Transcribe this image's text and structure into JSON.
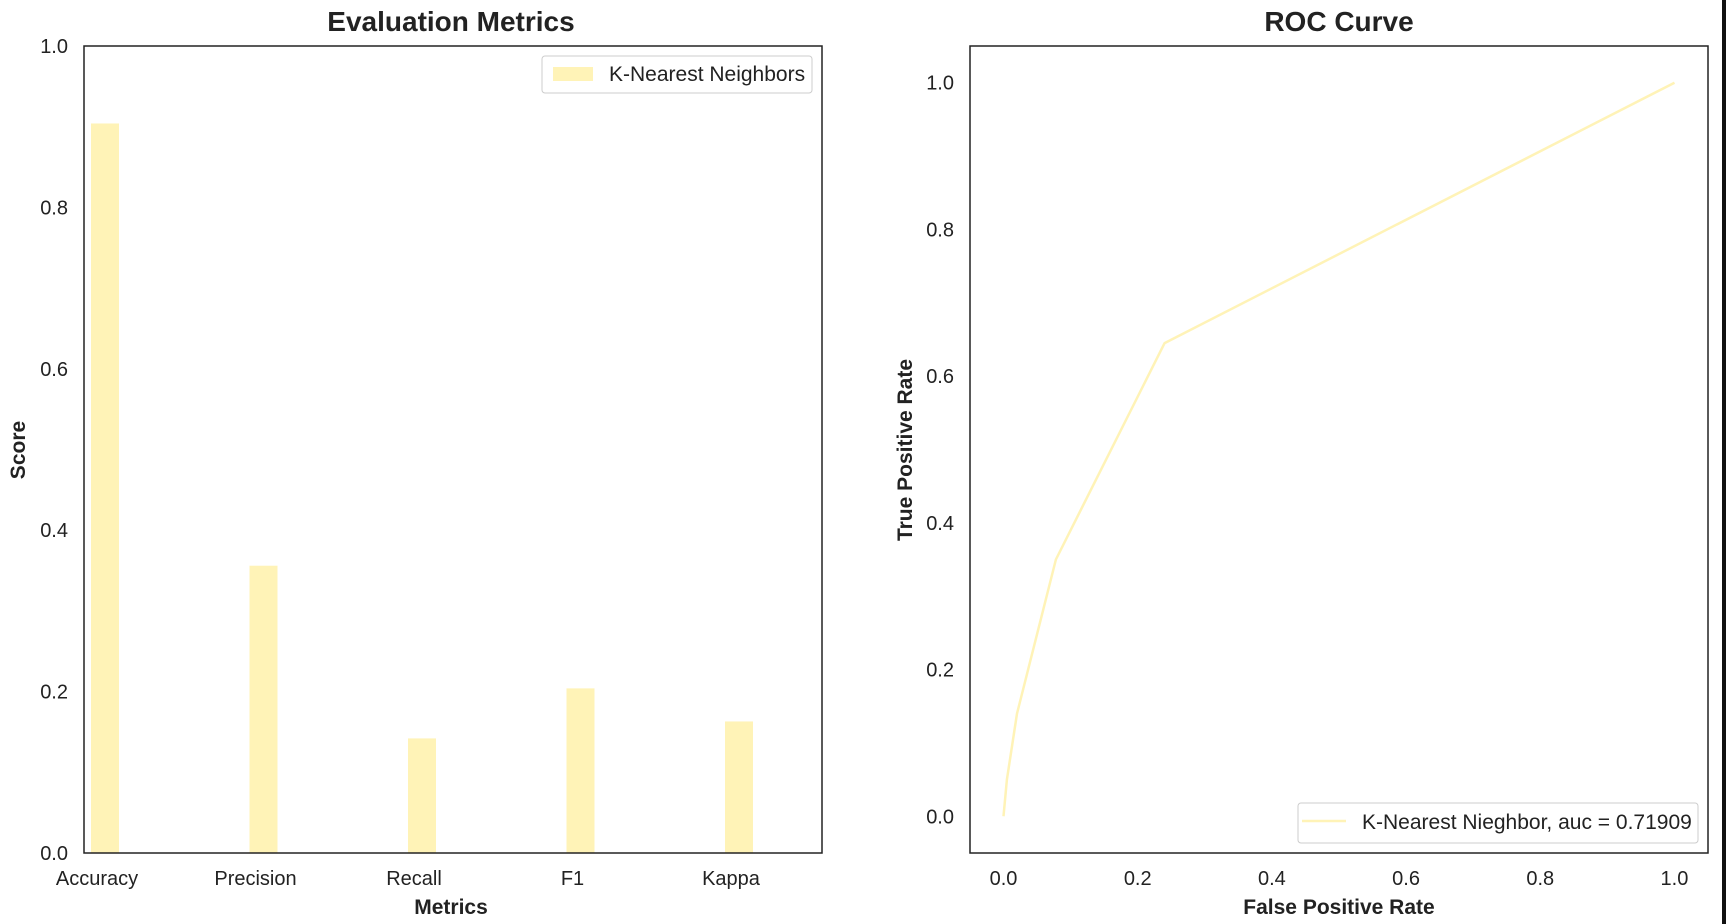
{
  "chart_data": [
    {
      "type": "bar",
      "title": "Evaluation Metrics",
      "xlabel": "Metrics",
      "ylabel": "Score",
      "ylim": [
        0.0,
        1.0
      ],
      "yticks": [
        "0.0",
        "0.2",
        "0.4",
        "0.6",
        "0.8",
        "1.0"
      ],
      "categories": [
        "Accuracy",
        "Precision",
        "Recall",
        "F1",
        "Kappa"
      ],
      "series": [
        {
          "name": "K-Nearest Neighbors",
          "values": [
            0.904,
            0.356,
            0.142,
            0.204,
            0.163
          ],
          "color": "#fff3b7"
        }
      ],
      "grid": false,
      "legend": "top-right"
    },
    {
      "type": "line",
      "title": "ROC Curve",
      "xlabel": "False Positive Rate",
      "ylabel": "True Positive Rate",
      "xlim": [
        -0.05,
        1.05
      ],
      "ylim": [
        -0.05,
        1.05
      ],
      "xticks": [
        "0.0",
        "0.2",
        "0.4",
        "0.6",
        "0.8",
        "1.0"
      ],
      "yticks": [
        "0.0",
        "0.2",
        "0.4",
        "0.6",
        "0.8",
        "1.0"
      ],
      "series": [
        {
          "name": "K-Nearest Nieghbor, auc = 0.71909",
          "x": [
            0.0,
            0.005,
            0.02,
            0.078,
            0.24,
            1.0
          ],
          "y": [
            0.0,
            0.05,
            0.14,
            0.35,
            0.645,
            1.0
          ],
          "color": "#fff3b7"
        }
      ],
      "grid": false,
      "legend": "bottom-right"
    }
  ]
}
